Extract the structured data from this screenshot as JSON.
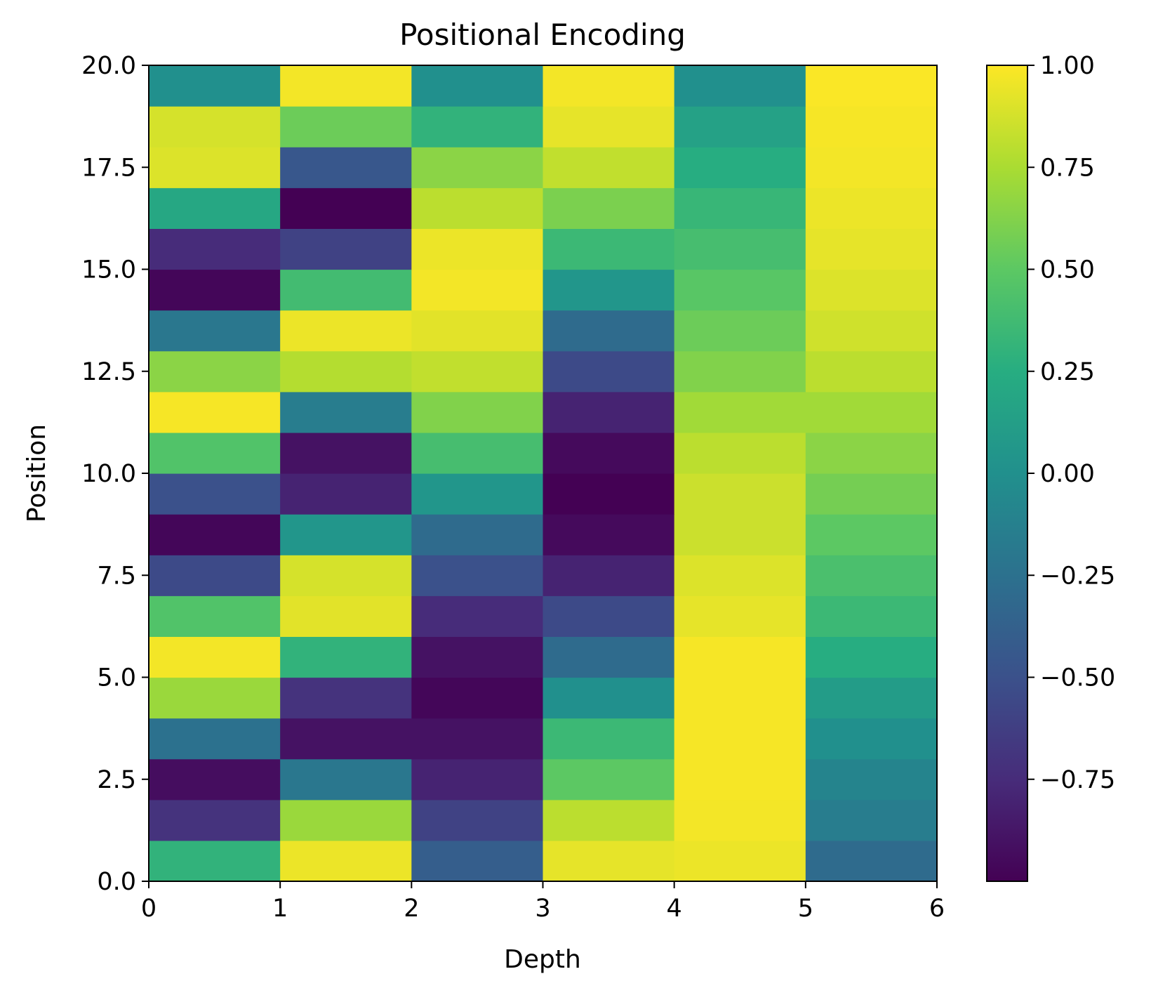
{
  "chart_data": {
    "type": "heatmap",
    "title": "Positional Encoding",
    "xlabel": "Depth",
    "ylabel": "Position",
    "xlim": [
      0,
      6
    ],
    "ylim": [
      0,
      20
    ],
    "x_ticks": [
      "0",
      "1",
      "2",
      "3",
      "4",
      "5",
      "6"
    ],
    "x_tick_values": [
      0,
      1,
      2,
      3,
      4,
      5,
      6
    ],
    "y_ticks": [
      "0.0",
      "2.5",
      "5.0",
      "7.5",
      "10.0",
      "12.5",
      "15.0",
      "17.5",
      "20.0"
    ],
    "y_tick_values": [
      0,
      2.5,
      5,
      7.5,
      10,
      12.5,
      15,
      17.5,
      20
    ],
    "colormap": "viridis",
    "vmin": -1,
    "vmax": 1,
    "colorbar_ticks": [
      "1.00",
      "0.75",
      "0.50",
      "0.25",
      "0.00",
      "−0.25",
      "−0.50",
      "−0.75"
    ],
    "colorbar_tick_values": [
      1.0,
      0.75,
      0.5,
      0.25,
      0.0,
      -0.25,
      -0.5,
      -0.75
    ],
    "grid": false,
    "values_by_position": [
      [
        0.3,
        0.95,
        -0.4,
        0.93,
        0.95,
        -0.3
      ],
      [
        -0.7,
        0.7,
        -0.6,
        0.8,
        0.97,
        -0.15
      ],
      [
        -0.93,
        -0.2,
        -0.8,
        0.5,
        0.98,
        -0.1
      ],
      [
        -0.25,
        -0.9,
        -0.9,
        0.35,
        0.98,
        0.0
      ],
      [
        0.7,
        -0.7,
        -0.97,
        0.0,
        0.98,
        0.1
      ],
      [
        0.97,
        0.3,
        -0.9,
        -0.3,
        0.98,
        0.25
      ],
      [
        0.45,
        0.92,
        -0.75,
        -0.55,
        0.93,
        0.35
      ],
      [
        -0.55,
        0.88,
        -0.5,
        -0.8,
        0.9,
        0.42
      ],
      [
        -0.97,
        0.05,
        -0.3,
        -0.95,
        0.85,
        0.5
      ],
      [
        -0.5,
        -0.8,
        0.05,
        -1.0,
        0.85,
        0.58
      ],
      [
        0.45,
        -0.9,
        0.4,
        -0.95,
        0.8,
        0.65
      ],
      [
        0.98,
        -0.15,
        0.62,
        -0.8,
        0.72,
        0.72
      ],
      [
        0.65,
        0.78,
        0.82,
        -0.55,
        0.62,
        0.8
      ],
      [
        -0.2,
        0.95,
        0.92,
        -0.3,
        0.55,
        0.86
      ],
      [
        -0.97,
        0.38,
        0.97,
        0.05,
        0.48,
        0.9
      ],
      [
        -0.75,
        -0.6,
        0.95,
        0.35,
        0.4,
        0.93
      ],
      [
        0.2,
        -1.0,
        0.8,
        0.6,
        0.33,
        0.95
      ],
      [
        0.9,
        -0.45,
        0.65,
        0.82,
        0.25,
        0.97
      ],
      [
        0.88,
        0.55,
        0.3,
        0.93,
        0.15,
        0.98
      ],
      [
        0.0,
        0.97,
        0.0,
        0.97,
        0.0,
        0.99
      ]
    ]
  }
}
